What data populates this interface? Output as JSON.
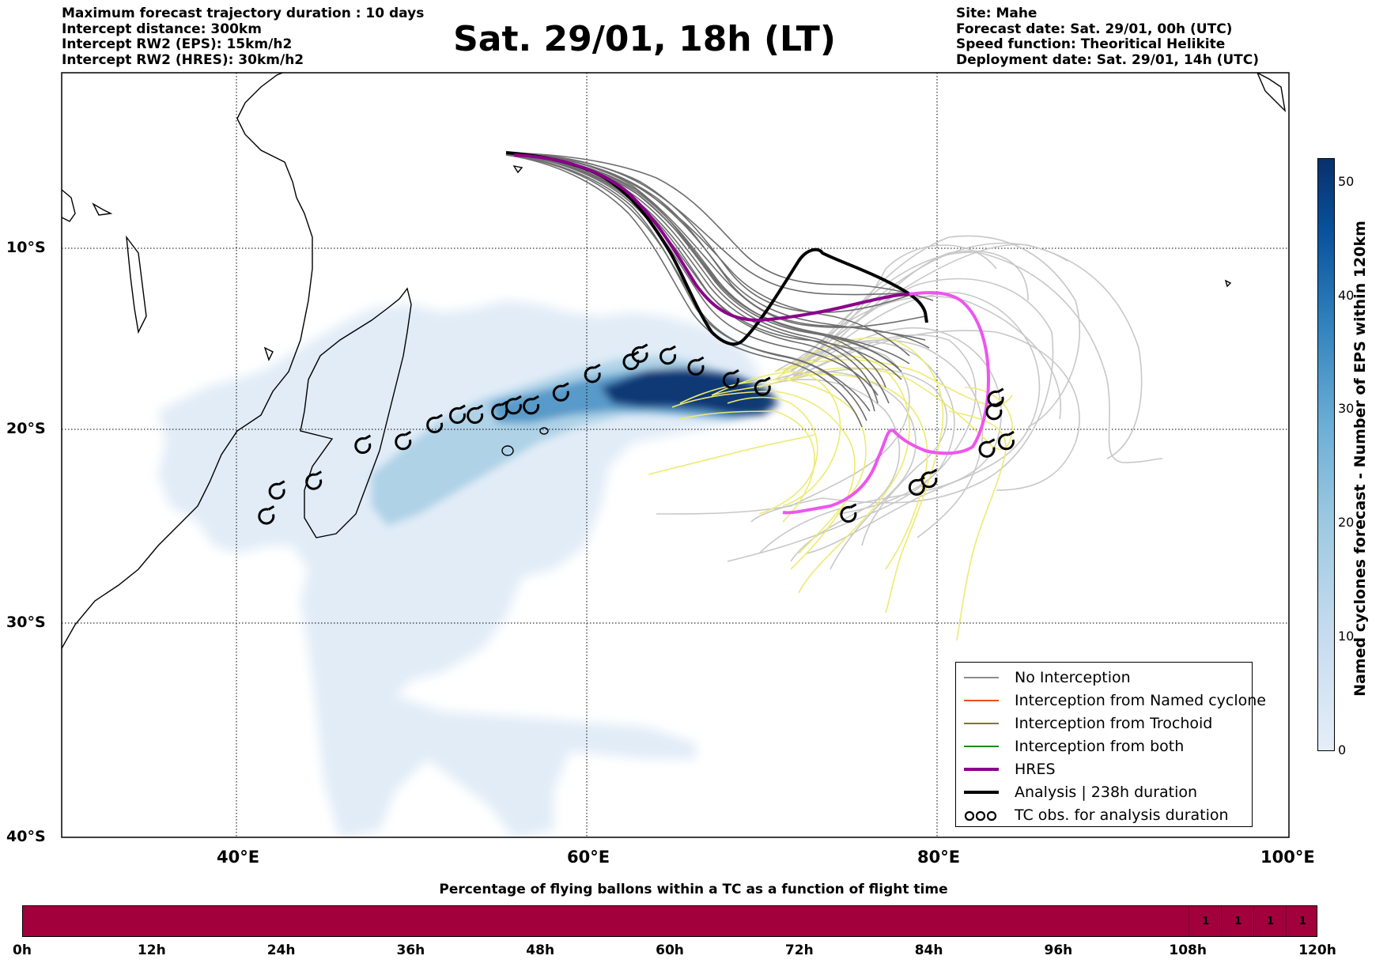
{
  "header_left": [
    "Maximum forecast trajectory duration : 10 days",
    "Intercept distance: 300km",
    "Intercept RW2 (EPS):  15km/h2",
    "Intercept RW2 (HRES): 30km/h2"
  ],
  "header_right": [
    "Site: Mahe",
    "Forecast date: Sat. 29/01, 00h (UTC)",
    "Speed function: Theoritical Helikite",
    "Deployment date: Sat. 29/01, 14h (UTC)"
  ],
  "title": "Sat. 29/01, 18h (LT)",
  "map": {
    "lat_labels": [
      "10°S",
      "20°S",
      "30°S",
      "40°S"
    ],
    "lon_labels": [
      "40°E",
      "60°E",
      "80°E",
      "100°E"
    ],
    "lon_range": [
      30,
      100
    ],
    "lat_range": [
      -40,
      -0.3
    ],
    "grid": "dotted"
  },
  "legend": {
    "items": [
      {
        "label": "No Interception",
        "color": "#8c8c8c",
        "style": "thin"
      },
      {
        "label": "Interception from Named cyclone",
        "color": "#e8501c",
        "style": "thin"
      },
      {
        "label": "Interception from Trochoid",
        "color": "#807a1a",
        "style": "thin"
      },
      {
        "label": "Interception from both",
        "color": "#1a8c1a",
        "style": "thin"
      },
      {
        "label": "HRES",
        "color": "#8b008b",
        "style": "thick"
      },
      {
        "label": "Analysis | 238h duration",
        "color": "#000000",
        "style": "thick"
      },
      {
        "label": "TC obs. for analysis duration",
        "color": "#000000",
        "style": "symbol"
      }
    ]
  },
  "colorbar": {
    "label": "Named cyclones forecast - Number of EPS within 120km",
    "ticks": [
      "0",
      "10",
      "20",
      "30",
      "40",
      "50"
    ],
    "tick_values": [
      0,
      10,
      20,
      30,
      40,
      50
    ],
    "max": 52
  },
  "bottom": {
    "title": "Percentage of flying ballons within a TC as a function of flight time",
    "bar_color": "#a1003c",
    "ticks": [
      "0h",
      "12h",
      "24h",
      "36h",
      "48h",
      "60h",
      "72h",
      "84h",
      "96h",
      "108h",
      "120h"
    ],
    "cell_values": [
      "1",
      "1",
      "1",
      "1"
    ],
    "cell_hours": [
      108,
      111,
      114,
      117
    ]
  },
  "chart_data": {
    "type": "map-trajectories",
    "deployment_site": {
      "name": "Mahe",
      "lon": 55.5,
      "lat": -4.6
    },
    "analysis_track": [
      [
        55.5,
        -4.6
      ],
      [
        58,
        -5
      ],
      [
        62,
        -6.5
      ],
      [
        65.5,
        -9.5
      ],
      [
        67.5,
        -13
      ],
      [
        69.3,
        -15.5
      ],
      [
        71.5,
        -13.5
      ],
      [
        73.7,
        -10.4
      ],
      [
        75.5,
        -11
      ],
      [
        78,
        -12.5
      ],
      [
        79.8,
        -14.3
      ]
    ],
    "hres_track": [
      [
        56,
        -4.8
      ],
      [
        59.5,
        -5
      ],
      [
        63,
        -6.5
      ],
      [
        65.5,
        -8.5
      ],
      [
        67.5,
        -11
      ],
      [
        69.5,
        -13.5
      ],
      [
        72,
        -14
      ],
      [
        75,
        -13.5
      ],
      [
        79,
        -12.5
      ],
      [
        81,
        -13
      ],
      [
        83,
        -15
      ],
      [
        84,
        -18.5
      ],
      [
        83.5,
        -21
      ],
      [
        81.5,
        -21.2
      ],
      [
        79.5,
        -21
      ],
      [
        77.7,
        -20
      ],
      [
        77.3,
        -22
      ],
      [
        75.5,
        -23.5
      ],
      [
        73,
        -24.3
      ],
      [
        71.5,
        -24.5
      ]
    ],
    "tc_obs": [
      [
        41.7,
        -24.7
      ],
      [
        42.3,
        -23.4
      ],
      [
        44.4,
        -22.9
      ],
      [
        47.2,
        -21
      ],
      [
        49.5,
        -20.8
      ],
      [
        51.3,
        -19.9
      ],
      [
        52.6,
        -19.4
      ],
      [
        53.6,
        -19.4
      ],
      [
        55,
        -19.2
      ],
      [
        55.8,
        -18.9
      ],
      [
        56.8,
        -18.9
      ],
      [
        58.5,
        -18.2
      ],
      [
        60.3,
        -17.2
      ],
      [
        62.5,
        -16.5
      ],
      [
        63,
        -16.1
      ],
      [
        64.6,
        -16.2
      ],
      [
        66.2,
        -16.8
      ],
      [
        68.2,
        -17.5
      ],
      [
        70,
        -17.9
      ],
      [
        74.9,
        -24.6
      ],
      [
        78.8,
        -23.2
      ],
      [
        79.5,
        -22.8
      ],
      [
        83.3,
        -18.5
      ],
      [
        83.2,
        -19.2
      ],
      [
        82.8,
        -21.2
      ],
      [
        83.9,
        -20.8
      ]
    ]
  }
}
